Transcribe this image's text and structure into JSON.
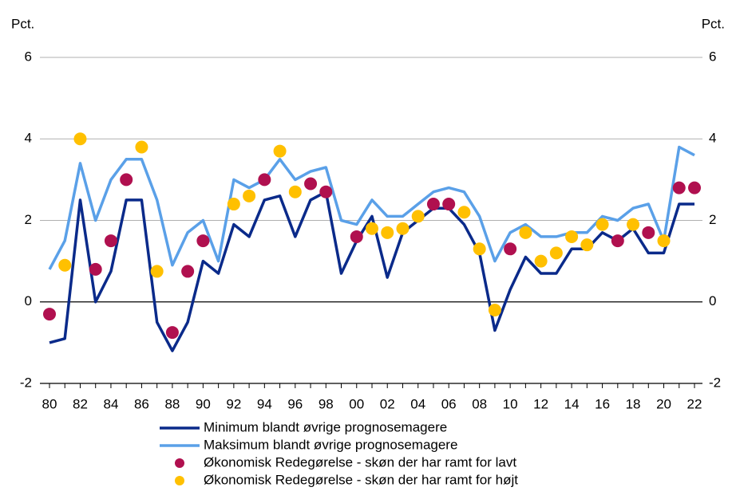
{
  "chart_data": {
    "type": "line",
    "y_label": "Pct.",
    "y2_label": "Pct.",
    "categories": [
      "80",
      null,
      "82",
      null,
      "84",
      null,
      "86",
      null,
      "88",
      null,
      "90",
      null,
      "92",
      null,
      "94",
      null,
      "96",
      null,
      "98",
      null,
      "00",
      null,
      "02",
      null,
      "04",
      null,
      "06",
      null,
      "08",
      null,
      "10",
      null,
      "12",
      null,
      "14",
      null,
      "16",
      null,
      "18",
      null,
      "20",
      null,
      "22"
    ],
    "ylim": [
      -2,
      6
    ],
    "yticks": [
      -2,
      0,
      2,
      4,
      6
    ],
    "y2lim": [
      -2,
      6
    ],
    "y2ticks": [
      -2,
      0,
      2,
      4,
      6
    ],
    "grid": true,
    "legend": "bottom",
    "series": [
      {
        "name": "Minimum blandt øvrige prognosemagere",
        "type": "line",
        "color": "#0a2a8a",
        "values": [
          -1.0,
          -0.9,
          2.5,
          0.0,
          0.75,
          2.5,
          2.5,
          -0.5,
          -1.2,
          -0.5,
          1.0,
          0.7,
          1.9,
          1.6,
          2.5,
          2.6,
          1.6,
          2.5,
          2.7,
          0.7,
          1.5,
          2.1,
          0.6,
          1.7,
          2.0,
          2.3,
          2.3,
          1.9,
          1.2,
          -0.7,
          0.3,
          1.1,
          0.7,
          0.7,
          1.3,
          1.3,
          1.7,
          1.5,
          1.8,
          1.2,
          1.2,
          2.4,
          2.4
        ]
      },
      {
        "name": "Maksimum blandt øvrige prognosemagere",
        "type": "line",
        "color": "#5aa0e8",
        "values": [
          0.8,
          1.5,
          3.4,
          2.0,
          3.0,
          3.5,
          3.5,
          2.5,
          0.9,
          1.7,
          2.0,
          1.0,
          3.0,
          2.8,
          3.0,
          3.5,
          3.0,
          3.2,
          3.3,
          2.0,
          1.9,
          2.5,
          2.1,
          2.1,
          2.4,
          2.7,
          2.8,
          2.7,
          2.1,
          1.0,
          1.7,
          1.9,
          1.6,
          1.6,
          1.7,
          1.7,
          2.1,
          2.0,
          2.3,
          2.4,
          1.5,
          3.8,
          3.6
        ]
      },
      {
        "name": "Økonomisk Redegørelse - skøn der har ramt for lavt",
        "type": "scatter",
        "color": "#b0104f",
        "values": [
          -0.3,
          null,
          null,
          0.8,
          1.5,
          3.0,
          null,
          null,
          -0.75,
          0.75,
          1.5,
          null,
          null,
          null,
          3.0,
          null,
          null,
          2.9,
          2.7,
          null,
          1.6,
          null,
          null,
          null,
          null,
          2.4,
          2.4,
          null,
          null,
          null,
          1.3,
          null,
          null,
          null,
          null,
          null,
          null,
          1.5,
          null,
          1.7,
          null,
          2.8,
          2.8
        ]
      },
      {
        "name": "Økonomisk Redegørelse - skøn der har ramt for højt",
        "type": "scatter",
        "color": "#ffc000",
        "values": [
          null,
          0.9,
          4.0,
          null,
          null,
          null,
          3.8,
          0.75,
          null,
          null,
          null,
          null,
          2.4,
          2.6,
          null,
          3.7,
          2.7,
          null,
          null,
          null,
          null,
          1.8,
          1.7,
          1.8,
          2.1,
          null,
          null,
          2.2,
          1.3,
          -0.2,
          null,
          1.7,
          1.0,
          1.2,
          1.6,
          1.4,
          1.9,
          null,
          1.9,
          null,
          1.5,
          null,
          null
        ]
      }
    ]
  }
}
